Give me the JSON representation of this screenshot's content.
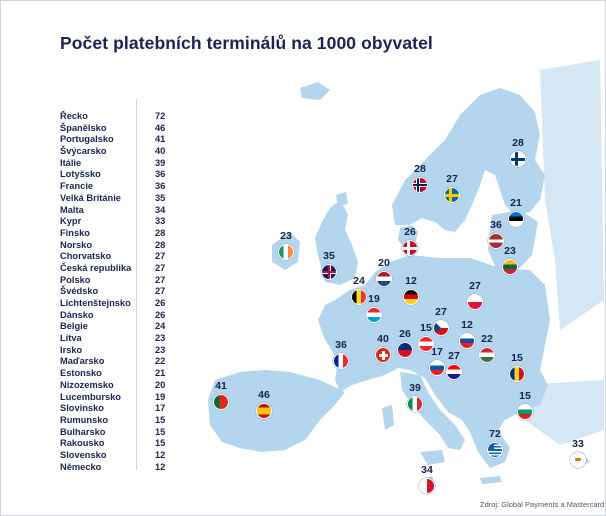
{
  "title": "Počet platebních terminálů na 1000 obyvatel",
  "source": "Zdroj: Global Payments a Mastercard",
  "colors": {
    "sea": "#ffffff",
    "land": "#b3d6ee",
    "land_outside": "#d5e6f4",
    "text": "#1a2452"
  },
  "ranking": [
    {
      "country": "Řecko",
      "value": "72"
    },
    {
      "country": "Španělsko",
      "value": "46"
    },
    {
      "country": "Portugalsko",
      "value": "41"
    },
    {
      "country": "Švýcarsko",
      "value": "40"
    },
    {
      "country": "Itálie",
      "value": "39"
    },
    {
      "country": "Lotyšsko",
      "value": "36"
    },
    {
      "country": "Francie",
      "value": "36"
    },
    {
      "country": "Velká Británie",
      "value": "35"
    },
    {
      "country": "Malta",
      "value": "34"
    },
    {
      "country": "Kypr",
      "value": "33"
    },
    {
      "country": "Finsko",
      "value": "28"
    },
    {
      "country": "Norsko",
      "value": "28"
    },
    {
      "country": "Chorvatsko",
      "value": "27"
    },
    {
      "country": "Česká republika",
      "value": "27"
    },
    {
      "country": "Polsko",
      "value": "27"
    },
    {
      "country": "Švédsko",
      "value": "27"
    },
    {
      "country": "Lichtenštejnsko",
      "value": "26"
    },
    {
      "country": "Dánsko",
      "value": "26"
    },
    {
      "country": "Belgie",
      "value": "24"
    },
    {
      "country": "Litva",
      "value": "23"
    },
    {
      "country": "Irsko",
      "value": "23"
    },
    {
      "country": "Maďarsko",
      "value": "22"
    },
    {
      "country": "Estonsko",
      "value": "21"
    },
    {
      "country": "Nizozemsko",
      "value": "20"
    },
    {
      "country": "Lucembursko",
      "value": "19"
    },
    {
      "country": "Slovinsko",
      "value": "17"
    },
    {
      "country": "Rumunsko",
      "value": "15"
    },
    {
      "country": "Bulharsko",
      "value": "15"
    },
    {
      "country": "Rakousko",
      "value": "15"
    },
    {
      "country": "Slovensko",
      "value": "12"
    },
    {
      "country": "Německo",
      "value": "12"
    }
  ],
  "map_markers": [
    {
      "value": "72",
      "flag": "greece-flag-icon"
    },
    {
      "value": "46",
      "flag": "spain-flag-icon"
    },
    {
      "value": "41",
      "flag": "portugal-flag-icon"
    },
    {
      "value": "40",
      "flag": "switzerland-flag-icon"
    },
    {
      "value": "39",
      "flag": "italy-flag-icon"
    },
    {
      "value": "36",
      "flag": "latvia-flag-icon"
    },
    {
      "value": "36",
      "flag": "france-flag-icon"
    },
    {
      "value": "35",
      "flag": "united-kingdom-flag-icon"
    },
    {
      "value": "34",
      "flag": "malta-flag-icon"
    },
    {
      "value": "33",
      "flag": "cyprus-flag-icon"
    },
    {
      "value": "28",
      "flag": "finland-flag-icon"
    },
    {
      "value": "28",
      "flag": "norway-flag-icon"
    },
    {
      "value": "27",
      "flag": "croatia-flag-icon"
    },
    {
      "value": "27",
      "flag": "czech-republic-flag-icon"
    },
    {
      "value": "27",
      "flag": "poland-flag-icon"
    },
    {
      "value": "27",
      "flag": "sweden-flag-icon"
    },
    {
      "value": "26",
      "flag": "liechtenstein-flag-icon"
    },
    {
      "value": "26",
      "flag": "denmark-flag-icon"
    },
    {
      "value": "24",
      "flag": "belgium-flag-icon"
    },
    {
      "value": "23",
      "flag": "lithuania-flag-icon"
    },
    {
      "value": "23",
      "flag": "ireland-flag-icon"
    },
    {
      "value": "22",
      "flag": "hungary-flag-icon"
    },
    {
      "value": "21",
      "flag": "estonia-flag-icon"
    },
    {
      "value": "20",
      "flag": "netherlands-flag-icon"
    },
    {
      "value": "19",
      "flag": "luxembourg-flag-icon"
    },
    {
      "value": "17",
      "flag": "slovenia-flag-icon"
    },
    {
      "value": "15",
      "flag": "romania-flag-icon"
    },
    {
      "value": "15",
      "flag": "bulgaria-flag-icon"
    },
    {
      "value": "15",
      "flag": "austria-flag-icon"
    },
    {
      "value": "12",
      "flag": "slovakia-flag-icon"
    },
    {
      "value": "12",
      "flag": "germany-flag-icon"
    }
  ]
}
